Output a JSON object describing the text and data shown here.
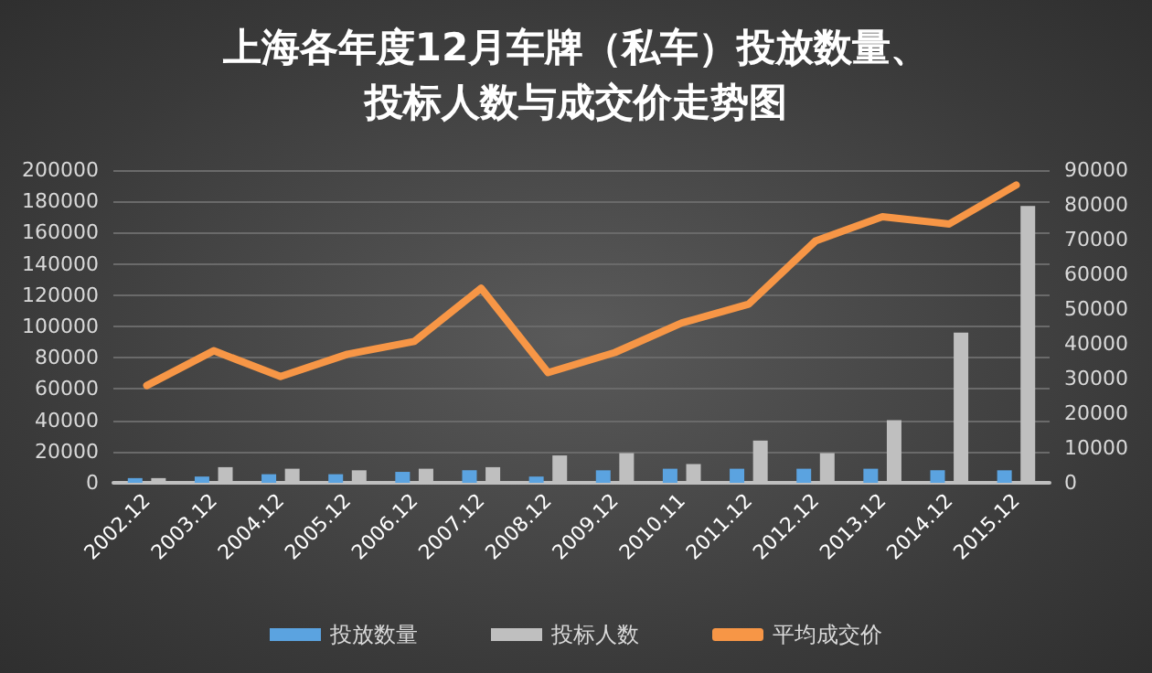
{
  "chart_data": {
    "type": "bar",
    "title": "上海各年度12月车牌（私车）投放数量、投标人数与成交价走势图",
    "categories": [
      "2002.12",
      "2003.12",
      "2004.12",
      "2005.12",
      "2006.12",
      "2007.12",
      "2008.12",
      "2009.12",
      "2010.11",
      "2011.12",
      "2012.12",
      "2013.12",
      "2014.12",
      "2015.12"
    ],
    "series": [
      {
        "name": "投放数量",
        "color": "#5ba3e0",
        "values": [
          3000,
          4000,
          5500,
          5500,
          7000,
          8000,
          4000,
          8000,
          9000,
          9000,
          9000,
          9000,
          8000,
          8000
        ]
      },
      {
        "name": "投标人数",
        "color": "#bfbfbf",
        "values": [
          3000,
          10000,
          9000,
          8000,
          9000,
          10000,
          17500,
          19000,
          12000,
          27000,
          19000,
          40000,
          96000,
          177000
        ]
      },
      {
        "name": "平均成交价",
        "type": "line",
        "axis": "y2",
        "color": "#f79646",
        "values": [
          28000,
          38000,
          30600,
          37000,
          40700,
          56000,
          31700,
          37500,
          46000,
          51400,
          69600,
          76600,
          74500,
          85700
        ]
      }
    ],
    "ylim": [
      0,
      200000
    ],
    "yticks": [
      0,
      20000,
      40000,
      60000,
      80000,
      100000,
      120000,
      140000,
      160000,
      180000,
      200000
    ],
    "y2lim": [
      0,
      90000
    ],
    "y2ticks": [
      0,
      10000,
      20000,
      30000,
      40000,
      50000,
      60000,
      70000,
      80000,
      90000
    ],
    "grid": "y",
    "legend": "bottom",
    "marker": "none",
    "line_style": "solid"
  }
}
